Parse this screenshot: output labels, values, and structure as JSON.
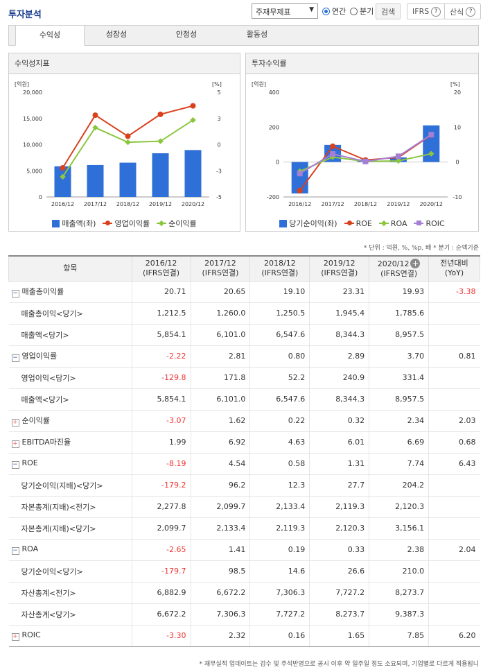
{
  "header": {
    "title": "투자분석",
    "select_value": "주재무제표",
    "radio_annual": "연간",
    "radio_quarter": "분기",
    "search_btn": "검색",
    "ifrs_btn": "IFRS",
    "formula_btn": "산식"
  },
  "tabs": [
    "수익성",
    "성장성",
    "안정성",
    "활동성"
  ],
  "chart_titles": {
    "left": "수익성지표",
    "right": "투자수익률"
  },
  "chart_data": [
    {
      "type": "bar",
      "categories": [
        "2016/12",
        "2017/12",
        "2018/12",
        "2019/12",
        "2020/12"
      ],
      "ylabel_left": "[억원]",
      "ylabel_right": "[%]",
      "ylim_left": [
        0,
        20000
      ],
      "ylim_right": [
        -5,
        5
      ],
      "yticks_left": [
        "20,000",
        "15,000",
        "10,000",
        "5,000",
        "0"
      ],
      "yticks_right": [
        "5",
        "3",
        "0",
        "-3",
        "-5"
      ],
      "series": [
        {
          "name": "매출액(좌)",
          "kind": "bar",
          "axis": "left",
          "color": "#2f6fd8",
          "values": [
            5854.1,
            6101.0,
            6547.6,
            8344.3,
            8957.5
          ]
        },
        {
          "name": "영업이익률",
          "kind": "line",
          "axis": "right",
          "color": "#d9411e",
          "values": [
            -2.22,
            2.81,
            0.8,
            2.89,
            3.7
          ]
        },
        {
          "name": "순이익률",
          "kind": "line",
          "axis": "right",
          "color": "#8cc63f",
          "values": [
            -3.07,
            1.62,
            0.22,
            0.32,
            2.34
          ]
        }
      ]
    },
    {
      "type": "bar",
      "categories": [
        "2016/12",
        "2017/12",
        "2018/12",
        "2019/12",
        "2020/12"
      ],
      "ylabel_left": "[억원]",
      "ylabel_right": "[%]",
      "ylim_left": [
        -200,
        400
      ],
      "ylim_right": [
        -10,
        20
      ],
      "yticks_left": [
        "400",
        "200",
        "0",
        "-200"
      ],
      "yticks_right": [
        "20",
        "10",
        "0",
        "-10"
      ],
      "series": [
        {
          "name": "당기순이익(좌)",
          "kind": "bar",
          "axis": "left",
          "color": "#2f6fd8",
          "values": [
            -179.7,
            98.5,
            14.6,
            26.6,
            210.0
          ]
        },
        {
          "name": "ROE",
          "kind": "line",
          "axis": "right",
          "color": "#d9411e",
          "values": [
            -8.19,
            4.54,
            0.58,
            1.31,
            7.74
          ]
        },
        {
          "name": "ROA",
          "kind": "line",
          "axis": "right",
          "color": "#8cc63f",
          "values": [
            -2.65,
            1.41,
            0.19,
            0.33,
            2.38
          ]
        },
        {
          "name": "ROIC",
          "kind": "line",
          "axis": "right",
          "color": "#a57fd6",
          "values": [
            -3.3,
            2.32,
            0.16,
            1.65,
            7.85
          ]
        }
      ]
    }
  ],
  "unit_note": "* 단위 : 억원, %, %p, 배   * 분기 : 순액기준",
  "table": {
    "headers": [
      "항목",
      "2016/12\n(IFRS연결)",
      "2017/12\n(IFRS연결)",
      "2018/12\n(IFRS연결)",
      "2019/12\n(IFRS연결)",
      "2020/12\n(IFRS연결)",
      "전년대비\n(YoY)"
    ],
    "rows": [
      {
        "label": "매출총이익률",
        "toggle": "minus",
        "vals": [
          "20.71",
          "20.65",
          "19.10",
          "23.31",
          "19.93",
          "-3.38"
        ]
      },
      {
        "label": "매출총이익<당기>",
        "sub": true,
        "vals": [
          "1,212.5",
          "1,260.0",
          "1,250.5",
          "1,945.4",
          "1,785.6",
          ""
        ]
      },
      {
        "label": "매출액<당기>",
        "sub": true,
        "vals": [
          "5,854.1",
          "6,101.0",
          "6,547.6",
          "8,344.3",
          "8,957.5",
          ""
        ]
      },
      {
        "label": "영업이익률",
        "toggle": "minus",
        "vals": [
          "-2.22",
          "2.81",
          "0.80",
          "2.89",
          "3.70",
          "0.81"
        ]
      },
      {
        "label": "영업이익<당기>",
        "sub": true,
        "vals": [
          "-129.8",
          "171.8",
          "52.2",
          "240.9",
          "331.4",
          ""
        ]
      },
      {
        "label": "매출액<당기>",
        "sub": true,
        "vals": [
          "5,854.1",
          "6,101.0",
          "6,547.6",
          "8,344.3",
          "8,957.5",
          ""
        ]
      },
      {
        "label": "순이익률",
        "toggle": "plus",
        "vals": [
          "-3.07",
          "1.62",
          "0.22",
          "0.32",
          "2.34",
          "2.03"
        ]
      },
      {
        "label": "EBITDA마진율",
        "toggle": "plus",
        "vals": [
          "1.99",
          "6.92",
          "4.63",
          "6.01",
          "6.69",
          "0.68"
        ]
      },
      {
        "label": "ROE",
        "toggle": "minus",
        "vals": [
          "-8.19",
          "4.54",
          "0.58",
          "1.31",
          "7.74",
          "6.43"
        ]
      },
      {
        "label": "당기순이익(지배)<당기>",
        "sub": true,
        "vals": [
          "-179.2",
          "96.2",
          "12.3",
          "27.7",
          "204.2",
          ""
        ]
      },
      {
        "label": "자본총계(지배)<전기>",
        "sub": true,
        "vals": [
          "2,277.8",
          "2,099.7",
          "2,133.4",
          "2,119.3",
          "2,120.3",
          ""
        ]
      },
      {
        "label": "자본총계(지배)<당기>",
        "sub": true,
        "vals": [
          "2,099.7",
          "2,133.4",
          "2,119.3",
          "2,120.3",
          "3,156.1",
          ""
        ]
      },
      {
        "label": "ROA",
        "toggle": "minus",
        "vals": [
          "-2.65",
          "1.41",
          "0.19",
          "0.33",
          "2.38",
          "2.04"
        ]
      },
      {
        "label": "당기순이익<당기>",
        "sub": true,
        "vals": [
          "-179.7",
          "98.5",
          "14.6",
          "26.6",
          "210.0",
          ""
        ]
      },
      {
        "label": "자산총계<전기>",
        "sub": true,
        "vals": [
          "6,882.9",
          "6,672.2",
          "7,306.3",
          "7,727.2",
          "8,273.7",
          ""
        ]
      },
      {
        "label": "자산총계<당기>",
        "sub": true,
        "vals": [
          "6,672.2",
          "7,306.3",
          "7,727.2",
          "8,273.7",
          "9,387.3",
          ""
        ]
      },
      {
        "label": "ROIC",
        "toggle": "plus",
        "vals": [
          "-3.30",
          "2.32",
          "0.16",
          "1.65",
          "7.85",
          "6.20"
        ]
      }
    ]
  },
  "footnote": "* 재무실적 업데이트는 검수 및 주석반영으로 공시 이후 약 일주일 정도 소요되며, 기업별로 다르게 적용됩니"
}
